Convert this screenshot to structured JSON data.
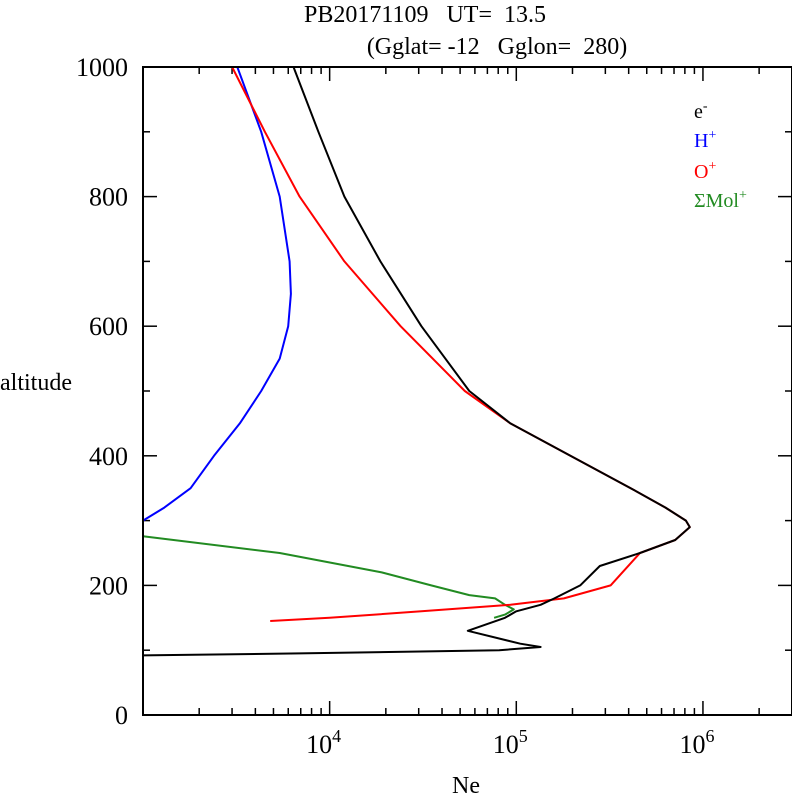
{
  "chart_data": {
    "type": "line",
    "title": "PB20171109   UT=  13.5",
    "subtitle": "(Gglat= -12   Gglon=  280)",
    "xlabel": "Ne",
    "ylabel": "altitude",
    "xscale": "log",
    "xlim": [
      1000,
      3000000
    ],
    "ylim": [
      0,
      1000
    ],
    "y_ticks": [
      "0",
      "200",
      "400",
      "600",
      "800",
      "1000"
    ],
    "x_ticks": [
      {
        "base": "10",
        "exp": "4",
        "value": 10000
      },
      {
        "base": "10",
        "exp": "5",
        "value": 100000
      },
      {
        "base": "10",
        "exp": "6",
        "value": 1000000
      }
    ],
    "legend_placement": "top-right",
    "series": [
      {
        "name": "e",
        "sup": "-",
        "color": "#000000",
        "points": [
          [
            6400,
            1000
          ],
          [
            8700,
            900
          ],
          [
            12000,
            800
          ],
          [
            18700,
            700
          ],
          [
            31000,
            600
          ],
          [
            56000,
            500
          ],
          [
            93000,
            450
          ],
          [
            195000,
            400
          ],
          [
            410000,
            350
          ],
          [
            630000,
            320
          ],
          [
            810000,
            300
          ],
          [
            850000,
            290
          ],
          [
            710000,
            270
          ],
          [
            460000,
            250
          ],
          [
            280000,
            230
          ],
          [
            220000,
            200
          ],
          [
            160000,
            180
          ],
          [
            135000,
            170
          ],
          [
            100000,
            160
          ],
          [
            87000,
            150
          ],
          [
            55000,
            130
          ],
          [
            105000,
            110
          ],
          [
            135000,
            105
          ],
          [
            81000,
            100
          ],
          [
            6900,
            95
          ],
          [
            1000,
            92
          ]
        ]
      },
      {
        "name": "H",
        "sup": "+",
        "color": "#0000ff",
        "points": [
          [
            3200,
            1000
          ],
          [
            4300,
            900
          ],
          [
            5400,
            800
          ],
          [
            6100,
            700
          ],
          [
            6200,
            650
          ],
          [
            6000,
            600
          ],
          [
            5400,
            550
          ],
          [
            4300,
            500
          ],
          [
            3300,
            450
          ],
          [
            2400,
            400
          ],
          [
            1800,
            350
          ],
          [
            1300,
            320
          ],
          [
            1000,
            300
          ]
        ]
      },
      {
        "name": "O",
        "sup": "+",
        "color": "#ff0000",
        "points": [
          [
            3000,
            1000
          ],
          [
            4500,
            900
          ],
          [
            6900,
            800
          ],
          [
            12000,
            700
          ],
          [
            24000,
            600
          ],
          [
            53000,
            500
          ],
          [
            93000,
            450
          ],
          [
            195000,
            400
          ],
          [
            410000,
            350
          ],
          [
            630000,
            320
          ],
          [
            810000,
            300
          ],
          [
            850000,
            290
          ],
          [
            710000,
            270
          ],
          [
            460000,
            250
          ],
          [
            320000,
            200
          ],
          [
            180000,
            180
          ],
          [
            93000,
            170
          ],
          [
            31000,
            160
          ],
          [
            10000,
            150
          ],
          [
            4800,
            145
          ]
        ]
      },
      {
        "name": "ΣMol",
        "sup": "+",
        "color": "#228b22",
        "points": [
          [
            1000,
            276
          ],
          [
            5400,
            250
          ],
          [
            19000,
            220
          ],
          [
            35000,
            200
          ],
          [
            56000,
            185
          ],
          [
            77000,
            180
          ],
          [
            87000,
            170
          ],
          [
            97000,
            163
          ],
          [
            87000,
            155
          ],
          [
            76000,
            150
          ]
        ]
      }
    ]
  }
}
